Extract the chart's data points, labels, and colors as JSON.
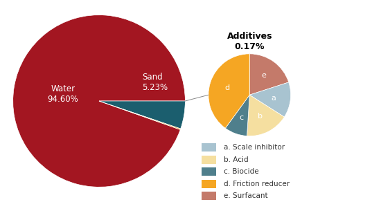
{
  "main_values": [
    94.6,
    5.23,
    0.17
  ],
  "main_colors": [
    "#a31621",
    "#1b5e6e",
    "#e8a020"
  ],
  "water_label": "Water\n94.60%",
  "sand_label": "Sand\n5.23%",
  "additive_labels": [
    "a",
    "b",
    "c",
    "d",
    "e"
  ],
  "additive_values": [
    14,
    17,
    9,
    40,
    20
  ],
  "additive_colors": [
    "#a8c3d0",
    "#f5dfa0",
    "#4f7f8c",
    "#f5a623",
    "#c47a6a"
  ],
  "additive_legend": [
    [
      "a. Scale inhibitor",
      "#a8c3d0"
    ],
    [
      "b. Acid",
      "#f5dfa0"
    ],
    [
      "c. Biocide",
      "#4f7f8c"
    ],
    [
      "d. Friction reducer",
      "#f5a623"
    ],
    [
      "e. Surfacant",
      "#c47a6a"
    ]
  ],
  "additives_title_line1": "Additives",
  "additives_title_line2": "0.17%",
  "bg_color": "#ffffff",
  "label_fontsize": 8.5,
  "legend_fontsize": 7.5,
  "title_fontsize": 9
}
